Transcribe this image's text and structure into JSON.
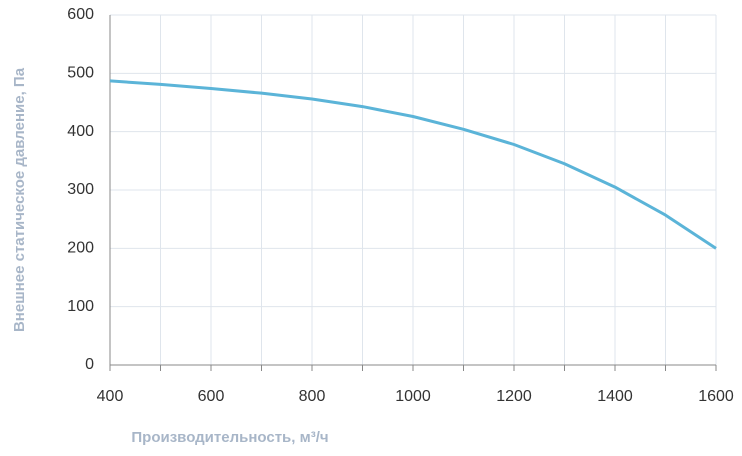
{
  "chart_data": {
    "type": "line",
    "xlabel": "Производительность, м³/ч",
    "ylabel": "Внешнее статическое давление, Па",
    "x": [
      400,
      500,
      600,
      700,
      800,
      900,
      1000,
      1100,
      1200,
      1300,
      1400,
      1500,
      1600
    ],
    "series": [
      {
        "color": "#5bb4d8",
        "values": [
          487,
          481,
          474,
          466,
          456,
          443,
          426,
          404,
          378,
          345,
          305,
          257,
          200
        ]
      }
    ],
    "xlim": [
      400,
      1600
    ],
    "xticks": [
      400,
      600,
      800,
      1000,
      1200,
      1400,
      1600
    ],
    "x_minor_ticks": [
      500,
      700,
      900,
      1100,
      1300,
      1500
    ],
    "ylim": [
      0,
      600
    ],
    "yticks": [
      0,
      100,
      200,
      300,
      400,
      500,
      600
    ],
    "grid": true
  }
}
